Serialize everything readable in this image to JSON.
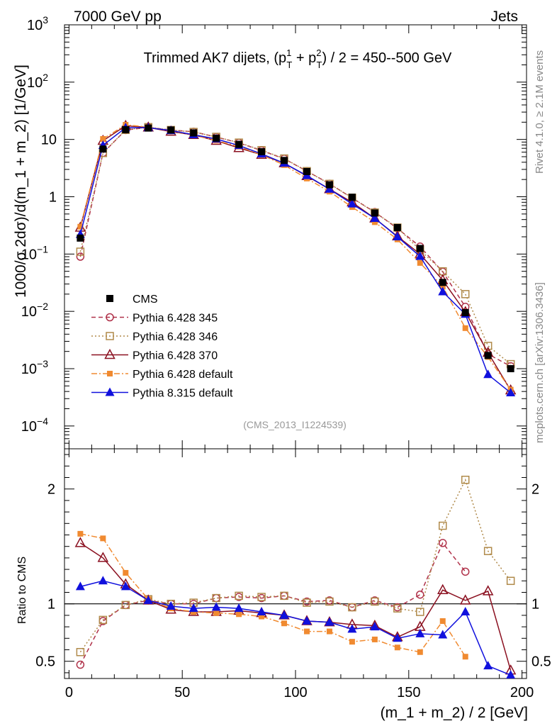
{
  "header": {
    "left": "7000 GeV pp",
    "right": "Jets"
  },
  "side": {
    "rivet": "Rivet 4.1.0, ≥ 2.1M events",
    "mcplots": "mcplots.cern.ch [arXiv:1306.3436]"
  },
  "title": {
    "prefix": "Trimmed AK7 dijets, (p",
    "sup1": "1",
    "sub1": "T",
    "mid": " + p",
    "sup2": "2",
    "sub2": "T",
    "suffix": ") / 2 = 450--500 GeV"
  },
  "analysis_id": "(CMS_2013_I1224539)",
  "colors": {
    "cms": "#000000",
    "p345": "#b0324a",
    "p346": "#b08a4a",
    "p370": "#8b1020",
    "p6def": "#f08a30",
    "p8": "#1010dd"
  },
  "chart_data": [
    {
      "type": "line",
      "panel": "main",
      "ylabel": "1000/σ  2dσ)/d(m_1 + m_2) [1/GeV]",
      "yscale": "log",
      "ylim": [
        4e-05,
        1000
      ],
      "xlim": [
        -2,
        202
      ],
      "y_tick_labels": [
        "10^-4",
        "10^-3",
        "10^-2",
        "10^-1",
        "1",
        "10",
        "10^2",
        "10^3"
      ],
      "x": [
        5,
        15,
        25,
        35,
        45,
        55,
        65,
        75,
        85,
        95,
        105,
        115,
        125,
        135,
        145,
        155,
        165,
        175,
        185,
        195
      ],
      "series": [
        {
          "name": "CMS",
          "style": "square-filled",
          "values": [
            0.19,
            6.8,
            14.8,
            15.8,
            14.6,
            13.0,
            10.5,
            8.2,
            6.1,
            4.3,
            2.75,
            1.62,
            0.98,
            0.52,
            0.29,
            0.125,
            0.032,
            0.0095,
            0.0017,
            0.001
          ]
        },
        {
          "name": "Pythia 6.428 345",
          "style": "circle-open-dashed",
          "values": [
            0.09,
            5.8,
            14.6,
            16.2,
            14.6,
            13.6,
            11.0,
            8.7,
            6.4,
            4.6,
            2.8,
            1.69,
            0.95,
            0.54,
            0.28,
            0.135,
            0.049,
            0.012,
            0.0018,
            0.0011
          ]
        },
        {
          "name": "Pythia 6.428 346",
          "style": "square-open-dotted",
          "values": [
            0.11,
            5.8,
            14.7,
            16.4,
            14.6,
            13.5,
            11.1,
            8.8,
            6.5,
            4.65,
            2.8,
            1.68,
            0.96,
            0.53,
            0.29,
            0.117,
            0.05,
            0.02,
            0.0025,
            0.0012
          ]
        },
        {
          "name": "Pythia 6.428 370",
          "style": "triangle-open-solid",
          "values": [
            0.29,
            9.5,
            17.3,
            16.2,
            13.7,
            12.0,
            9.5,
            7.1,
            5.4,
            3.85,
            2.3,
            1.36,
            0.8,
            0.42,
            0.204,
            0.1,
            0.035,
            0.0097,
            0.0019,
            0.00042
          ]
        },
        {
          "name": "Pythia 6.428 default",
          "style": "square-filled-dashdot",
          "values": [
            0.3,
            10.2,
            18.0,
            16.4,
            14.0,
            12.0,
            9.6,
            7.5,
            5.4,
            3.57,
            2.08,
            1.23,
            0.66,
            0.36,
            0.18,
            0.07,
            0.027,
            0.0051,
            0.0016,
            0.00043
          ]
        },
        {
          "name": "Pythia 8.315 default",
          "style": "triangle-filled-solid",
          "values": [
            0.22,
            7.9,
            16.0,
            16.0,
            14.3,
            12.1,
            10.2,
            7.85,
            5.6,
            3.85,
            2.34,
            1.36,
            0.75,
            0.42,
            0.2,
            0.091,
            0.022,
            0.0089,
            0.00079,
            0.00038
          ]
        }
      ]
    },
    {
      "type": "line",
      "panel": "ratio",
      "xlabel": "(m_1 + m_2) / 2 [GeV]",
      "ylabel": "Ratio to CMS",
      "ylim": [
        0.35,
        2.35
      ],
      "xlim": [
        -2,
        202
      ],
      "x_ticks": [
        0,
        50,
        100,
        150,
        200
      ],
      "y_ticks": [
        0.5,
        1,
        2
      ],
      "x": [
        5,
        15,
        25,
        35,
        45,
        55,
        65,
        75,
        85,
        95,
        105,
        115,
        125,
        135,
        145,
        155,
        165,
        175,
        185,
        195
      ],
      "series": [
        {
          "name": "Pythia 6.428 345",
          "values": [
            0.47,
            0.85,
            0.99,
            1.03,
            1.0,
            1.0,
            1.05,
            1.06,
            1.05,
            1.07,
            1.02,
            1.03,
            0.97,
            1.03,
            0.97,
            1.08,
            1.53,
            1.28,
            null,
            null
          ]
        },
        {
          "name": "Pythia 6.428 346",
          "values": [
            0.58,
            0.86,
            0.99,
            1.04,
            1.0,
            1.01,
            1.05,
            1.07,
            1.06,
            1.07,
            1.01,
            1.02,
            0.97,
            1.02,
            0.96,
            0.93,
            1.68,
            2.08,
            1.46,
            1.2
          ]
        },
        {
          "name": "Pythia 6.428 370",
          "values": [
            1.53,
            1.4,
            1.17,
            1.03,
            0.95,
            0.93,
            0.93,
            0.94,
            0.92,
            0.9,
            0.85,
            0.84,
            0.82,
            0.81,
            0.71,
            0.8,
            1.12,
            1.03,
            1.11,
            0.42
          ]
        },
        {
          "name": "Pythia 6.428 default",
          "values": [
            1.61,
            1.57,
            1.27,
            1.04,
            0.96,
            0.93,
            0.92,
            0.91,
            0.89,
            0.83,
            0.76,
            0.76,
            0.67,
            0.69,
            0.62,
            0.58,
            0.85,
            0.54,
            null,
            null
          ]
        },
        {
          "name": "Pythia 8.315 default",
          "values": [
            1.15,
            1.2,
            1.15,
            1.03,
            0.98,
            0.96,
            0.97,
            0.96,
            0.93,
            0.9,
            0.85,
            0.84,
            0.78,
            0.8,
            0.7,
            0.74,
            0.73,
            0.93,
            0.46,
            0.38
          ]
        }
      ]
    }
  ],
  "tick_labels": {
    "main_y": [
      "10",
      "−4",
      "10",
      "−3",
      "10",
      "−2",
      "10",
      "−1",
      "1",
      "10",
      "10",
      "2",
      "10",
      "3"
    ],
    "ratio_y": [
      "0.5",
      "1",
      "2"
    ],
    "ratio_y_right": [
      "0.5",
      "1",
      "2"
    ],
    "x": [
      "0",
      "50",
      "100",
      "150",
      "200"
    ]
  }
}
